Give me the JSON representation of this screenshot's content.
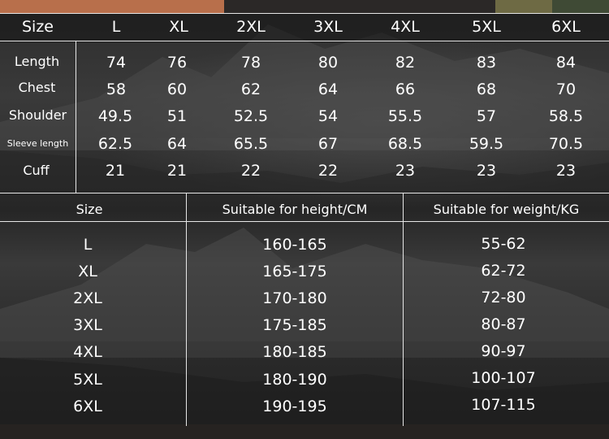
{
  "table1": {
    "header_label": "Size",
    "sizes": [
      "L",
      "XL",
      "2XL",
      "3XL",
      "4XL",
      "5XL",
      "6XL"
    ],
    "rows": [
      {
        "label": "Length",
        "values": [
          "74",
          "76",
          "78",
          "80",
          "82",
          "83",
          "84"
        ]
      },
      {
        "label": "Chest",
        "values": [
          "58",
          "60",
          "62",
          "64",
          "66",
          "68",
          "70"
        ]
      },
      {
        "label": "Shoulder",
        "values": [
          "49.5",
          "51",
          "52.5",
          "54",
          "55.5",
          "57",
          "58.5"
        ]
      },
      {
        "label": "Sleeve length",
        "values": [
          "62.5",
          "64",
          "65.5",
          "67",
          "68.5",
          "59.5",
          "70.5"
        ]
      },
      {
        "label": "Cuff",
        "values": [
          "21",
          "21",
          "22",
          "22",
          "23",
          "23",
          "23"
        ]
      }
    ]
  },
  "table2": {
    "headers": [
      "Size",
      "Suitable for height/CM",
      "Suitable for weight/KG"
    ],
    "rows": [
      {
        "size": "L",
        "height": "160-165",
        "weight": "55-62"
      },
      {
        "size": "XL",
        "height": "165-175",
        "weight": "62-72"
      },
      {
        "size": "2XL",
        "height": "170-180",
        "weight": "72-80"
      },
      {
        "size": "3XL",
        "height": "175-185",
        "weight": "80-87"
      },
      {
        "size": "4XL",
        "height": "180-185",
        "weight": "90-97"
      },
      {
        "size": "5XL",
        "height": "180-190",
        "weight": "100-107"
      },
      {
        "size": "6XL",
        "height": "190-195",
        "weight": "107-115"
      }
    ]
  }
}
